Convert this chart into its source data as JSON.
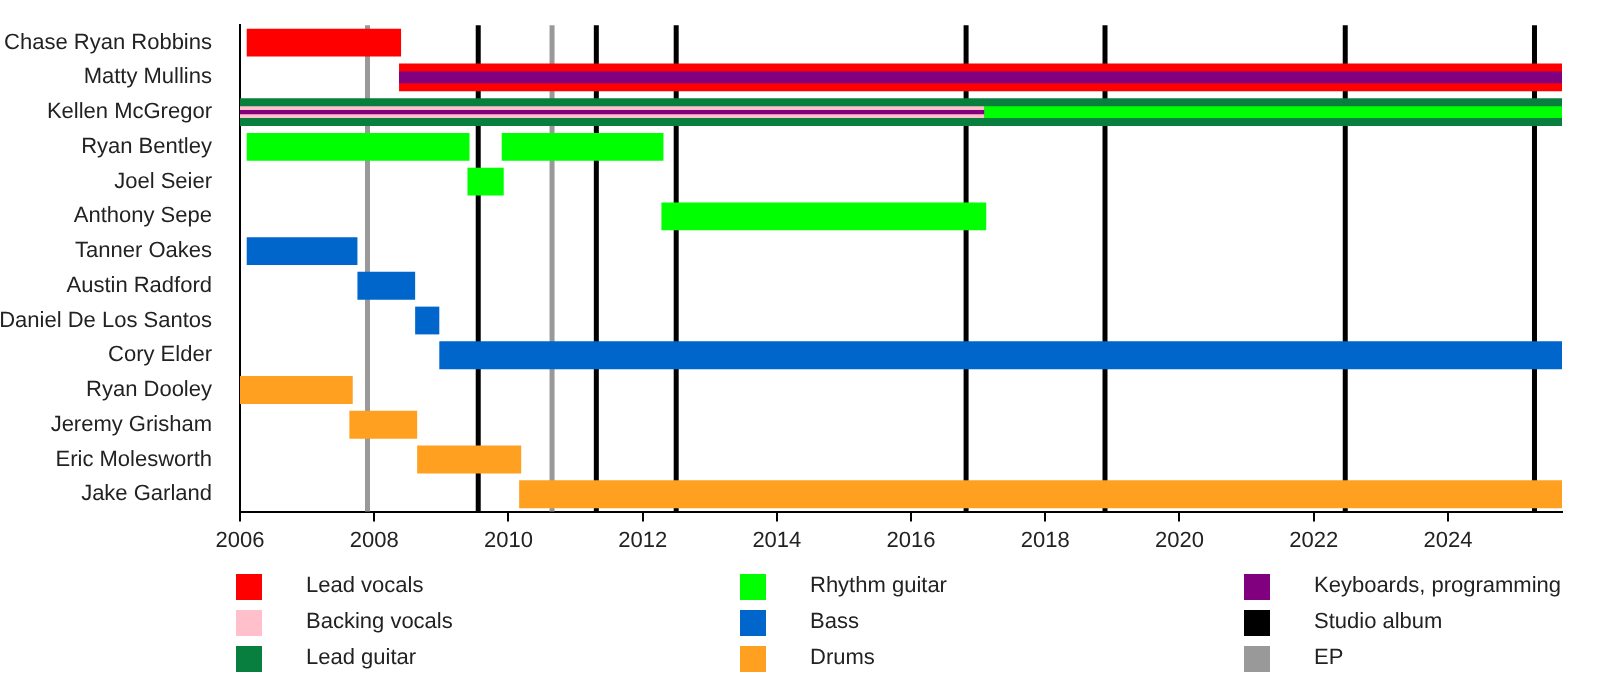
{
  "chart_data": {
    "type": "bar",
    "orientation": "horizontal",
    "categories": [
      "Chase Ryan Robbins",
      "Matty Mullins",
      "Kellen McGregor",
      "Ryan Bentley",
      "Joel Seier",
      "Anthony Sepe",
      "Tanner Oakes",
      "Austin Radford",
      "Daniel De Los Santos",
      "Cory Elder",
      "Ryan Dooley",
      "Jeremy Grisham",
      "Eric Molesworth",
      "Jake Garland"
    ],
    "series": [
      {
        "name": "Lead vocals",
        "color": "#ff0000",
        "base": [
          2006.1,
          2008.37,
          null,
          null,
          null,
          null,
          null,
          null,
          null,
          null,
          null,
          null,
          null,
          null
        ],
        "values": [
          2.3,
          17.33,
          null,
          null,
          null,
          null,
          null,
          null,
          null,
          null,
          null,
          null,
          null,
          null
        ]
      },
      {
        "name": "Backing vocals",
        "color": "#ffc0cb",
        "base": [
          null,
          null,
          2006,
          null,
          null,
          null,
          null,
          null,
          null,
          null,
          null,
          null,
          null,
          null
        ],
        "values": [
          null,
          null,
          11.09,
          null,
          null,
          null,
          null,
          null,
          null,
          null,
          null,
          null,
          null,
          null
        ]
      },
      {
        "name": "Lead guitar",
        "color": "#087f3f",
        "base": [
          null,
          null,
          2006,
          null,
          null,
          null,
          null,
          null,
          null,
          null,
          null,
          null,
          null,
          null
        ],
        "values": [
          null,
          null,
          19.7,
          null,
          null,
          null,
          null,
          null,
          null,
          null,
          null,
          null,
          null,
          null
        ]
      },
      {
        "name": "Rhythm guitar",
        "color": "#00ff00",
        "base": [
          null,
          null,
          2017.09,
          2006.1,
          2009.39,
          2012.28,
          null,
          null,
          null,
          null,
          null,
          null,
          null,
          null
        ],
        "values": [
          null,
          null,
          8.61,
          3.32,
          0.54,
          4.84,
          null,
          null,
          null,
          null,
          null,
          null,
          null,
          null
        ]
      },
      {
        "name": "Bass",
        "color": "#0066cc",
        "base": [
          null,
          null,
          null,
          null,
          null,
          null,
          2006.1,
          2007.75,
          2008.61,
          2008.97,
          null,
          null,
          null,
          null
        ],
        "values": [
          null,
          null,
          null,
          null,
          null,
          null,
          1.65,
          0.86,
          0.36,
          16.73,
          null,
          null,
          null,
          null
        ]
      },
      {
        "name": "Drums",
        "color": "#ffa020",
        "base": [
          null,
          null,
          null,
          null,
          null,
          null,
          null,
          null,
          null,
          null,
          2006,
          2007.63,
          2008.64,
          2010.16
        ],
        "values": [
          null,
          null,
          null,
          null,
          null,
          null,
          null,
          null,
          null,
          null,
          1.68,
          1.01,
          1.55,
          15.54
        ]
      },
      {
        "name": "Keyboards, programming",
        "color": "#800080",
        "base": [
          null,
          2008.37,
          2006,
          null,
          null,
          null,
          null,
          null,
          null,
          null,
          null,
          null,
          null,
          null
        ],
        "values": [
          null,
          17.33,
          11.09,
          null,
          null,
          null,
          null,
          null,
          null,
          null,
          null,
          null,
          null,
          null
        ]
      },
      {
        "color": "#00ff00",
        "base": [
          null,
          null,
          null,
          2009.9,
          null,
          null,
          null,
          null,
          null,
          null,
          null,
          null,
          null,
          null
        ],
        "values": [
          null,
          null,
          null,
          2.41,
          null,
          null,
          null,
          null,
          null,
          null,
          null,
          null,
          null,
          null
        ]
      }
    ],
    "xlim": [
      2006,
      2025.7
    ],
    "xticks": [
      2006,
      2008,
      2010,
      2012,
      2014,
      2016,
      2018,
      2020,
      2022,
      2024
    ],
    "ref_lines": [
      {
        "axis": "x",
        "value": 2009.55,
        "label": "Studio album",
        "color": "#000000"
      },
      {
        "axis": "x",
        "value": 2011.31,
        "color": "#000000"
      },
      {
        "axis": "x",
        "value": 2012.5,
        "color": "#000000"
      },
      {
        "axis": "x",
        "value": 2016.82,
        "color": "#000000"
      },
      {
        "axis": "x",
        "value": 2018.89,
        "color": "#000000"
      },
      {
        "axis": "x",
        "value": 2022.47,
        "color": "#000000"
      },
      {
        "axis": "x",
        "value": 2025.29,
        "color": "#000000"
      },
      {
        "axis": "x",
        "value": 2007.9,
        "label": "EP",
        "color": "#999999"
      },
      {
        "axis": "x",
        "value": 2010.65,
        "color": "#999999"
      }
    ],
    "grid": false,
    "legend": "bottom"
  }
}
